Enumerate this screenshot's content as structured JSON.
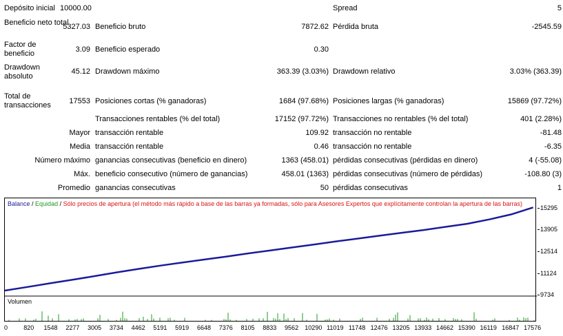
{
  "report": {
    "deposit_label": "Depósito inicial",
    "deposit_value": "10000.00",
    "spread_label": "Spread",
    "spread_value": "5",
    "net_profit_label": "Beneficio neto total",
    "net_profit_value": "5327.03",
    "gross_profit_label": "Beneficio bruto",
    "gross_profit_value": "7872.62",
    "gross_loss_label": "Pérdida bruta",
    "gross_loss_value": "-2545.59",
    "profit_factor_label": "Factor de beneficio",
    "profit_factor_value": "3.09",
    "expected_payoff_label": "Beneficio esperado",
    "expected_payoff_value": "0.30",
    "abs_drawdown_label": "Drawdown absoluto",
    "abs_drawdown_value": "45.12",
    "max_drawdown_label": "Drawdown máximo",
    "max_drawdown_value": "363.39 (3.03%)",
    "rel_drawdown_label": "Drawdown relativo",
    "rel_drawdown_value": "3.03% (363.39)",
    "total_trades_label": "Total de transacciones",
    "total_trades_value": "17553",
    "short_label": "Posiciones cortas (% ganadoras)",
    "short_value": "1684 (97.68%)",
    "long_label": "Posiciones largas (% ganadoras)",
    "long_value": "15869 (97.72%)",
    "profit_trades_label": "Transacciones rentables (% del total)",
    "profit_trades_value": "17152 (97.72%)",
    "loss_trades_label": "Transacciones no rentables (% del total)",
    "loss_trades_value": "401 (2.28%)",
    "largest_label": "Mayor",
    "largest_profit_label": "transacción rentable",
    "largest_profit_value": "109.92",
    "largest_loss_label": "transacción no rentable",
    "largest_loss_value": "-81.48",
    "average_label": "Media",
    "average_profit_label": "transacción rentable",
    "average_profit_value": "0.46",
    "average_loss_label": "transacción no rentable",
    "average_loss_value": "-6.35",
    "max_label": "Número máximo",
    "max_consec_wins_label": "ganancias consecutivas (beneficio en dinero)",
    "max_consec_wins_value": "1363 (458.01)",
    "max_consec_losses_label": "pérdidas consecutivas (pérdidas en dinero)",
    "max_consec_losses_value": "4 (-55.08)",
    "maximal_label": "Máx.",
    "maximal_profit_label": "beneficio consecutivo (número de ganancias)",
    "maximal_profit_value": "458.01 (1363)",
    "maximal_loss_label": "pérdidas consecutivas (número de pérdidas)",
    "maximal_loss_value": "-108.80 (3)",
    "avg_label": "Promedio",
    "avg_wins_label": "ganancias consecutivas",
    "avg_wins_value": "50",
    "avg_losses_label": "pérdidas consecutivas",
    "avg_losses_value": "1"
  },
  "chart_legend": {
    "balance": "Balance",
    "sep1": " / ",
    "equity": "Equidad",
    "sep2": " / ",
    "note": "Sólo precios de apertura (el método más rápido a base de las barras ya formadas, sólo para Asesores Expertos que explícitamente controlan la apertura de las barras)"
  },
  "volume_label": "Volumen",
  "colors": {
    "balance": "#1b1b9a",
    "equity": "#1e9a1e",
    "note": "#dd1111",
    "volume": "#1e9a1e"
  },
  "chart_data": {
    "type": "line",
    "title": "",
    "series": [
      {
        "name": "Balance",
        "x": [
          0,
          820,
          1548,
          2277,
          3005,
          3734,
          4462,
          5191,
          5919,
          6648,
          7376,
          8105,
          8833,
          9562,
          10290,
          11019,
          11748,
          12476,
          13205,
          13933,
          14662,
          15390,
          16119,
          16847,
          17576
        ],
        "values": [
          10000,
          10250,
          10480,
          10700,
          10930,
          11170,
          11390,
          11600,
          11800,
          11990,
          12180,
          12380,
          12570,
          12760,
          12950,
          13150,
          13330,
          13520,
          13700,
          13880,
          14080,
          14280,
          14560,
          14880,
          15327
        ]
      }
    ],
    "x_ticks": [
      "0",
      "820",
      "1548",
      "2277",
      "3005",
      "3734",
      "4462",
      "5191",
      "5919",
      "6648",
      "7376",
      "8105",
      "8833",
      "9562",
      "10290",
      "11019",
      "11748",
      "12476",
      "13205",
      "13933",
      "14662",
      "15390",
      "16119",
      "16847",
      "17576"
    ],
    "y_ticks": [
      "15295",
      "13905",
      "12514",
      "11124",
      "9734"
    ],
    "ylim": [
      9734,
      15560
    ],
    "xlim": [
      0,
      17700
    ],
    "legend": "top-left"
  }
}
